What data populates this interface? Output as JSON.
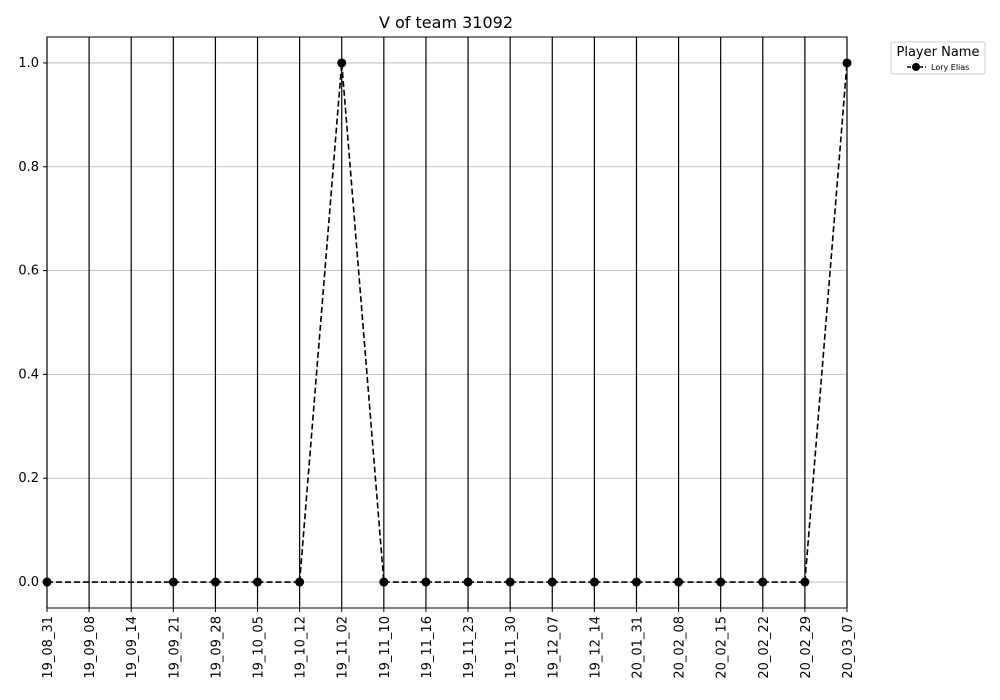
{
  "chart_data": {
    "type": "line",
    "title": "V of team 31092",
    "xlabel": "",
    "ylabel": "",
    "categories": [
      "19_08_31",
      "19_09_08",
      "19_09_14",
      "19_09_21",
      "19_09_28",
      "19_10_05",
      "19_10_12",
      "19_11_02",
      "19_11_10",
      "19_11_16",
      "19_11_23",
      "19_11_30",
      "19_12_07",
      "19_12_14",
      "20_01_31",
      "20_02_08",
      "20_02_15",
      "20_02_22",
      "20_02_29",
      "20_03_07"
    ],
    "ylim": [
      -0.05,
      1.05
    ],
    "yticks": [
      "0.0",
      "0.2",
      "0.4",
      "0.6",
      "0.8",
      "1.0"
    ],
    "grid": "horizontal",
    "vertical_lines_at_categories": true,
    "legend": {
      "title": "Player Name",
      "position": "outside-top-right"
    },
    "series": [
      {
        "name": "Lory Elias",
        "color": "#000000",
        "line_style": "dashed",
        "marker": "circle",
        "values": [
          0,
          null,
          null,
          0,
          0,
          0,
          0,
          1,
          0,
          0,
          0,
          0,
          0,
          0,
          0,
          0,
          0,
          0,
          0,
          1
        ]
      }
    ]
  }
}
